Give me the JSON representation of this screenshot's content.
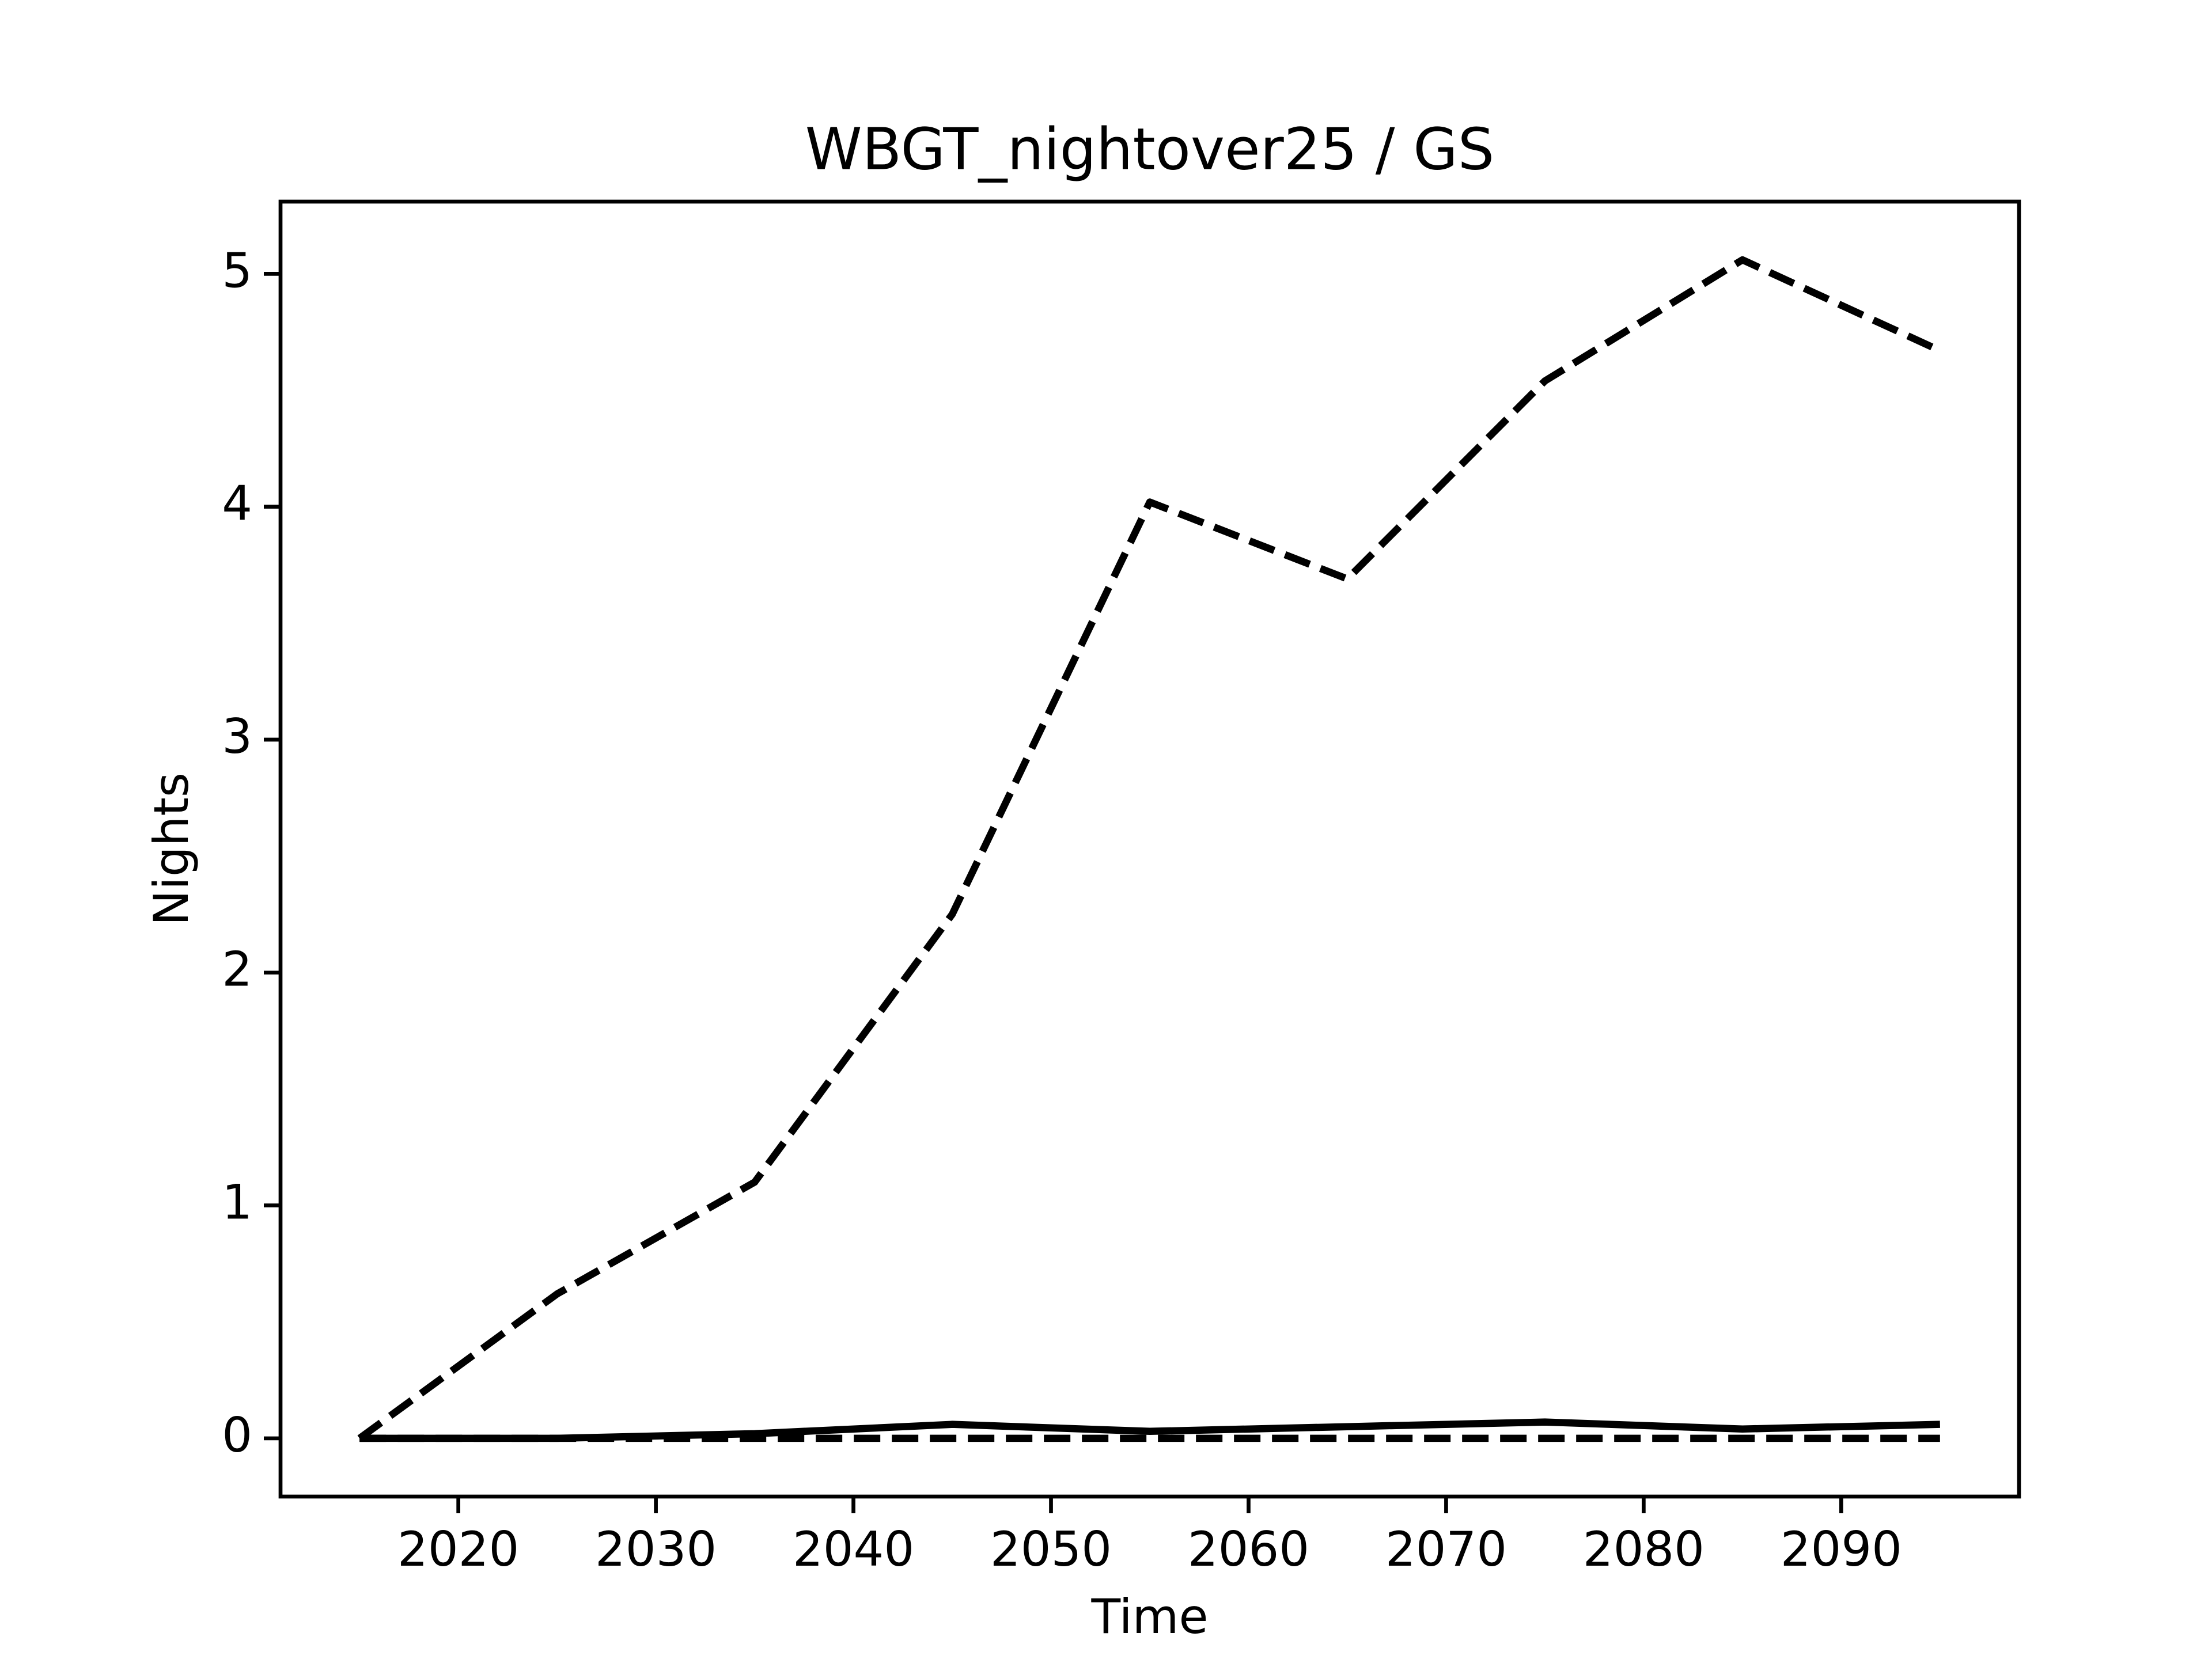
{
  "chart_data": {
    "type": "line",
    "title": "WBGT_nightover25 / GS",
    "x_label": "Time",
    "y_label": "Nights",
    "x": [
      2015,
      2025,
      2035,
      2045,
      2055,
      2065,
      2075,
      2085,
      2095
    ],
    "series": [
      {
        "color": "#000000",
        "dashed": true,
        "values": [
          0,
          0.62,
          1.1,
          2.25,
          4.02,
          3.69,
          4.54,
          5.06,
          4.67
        ]
      },
      {
        "color": "#000000",
        "dashed": false,
        "values": [
          0,
          0,
          0.02,
          0.06,
          0.03,
          0.05,
          0.07,
          0.04,
          0.06
        ]
      },
      {
        "color": "#000000",
        "dashed": true,
        "values": [
          0,
          0,
          0,
          0,
          0,
          0,
          0,
          0,
          0
        ]
      }
    ],
    "xlim": [
      2011,
      2099
    ],
    "ylim": [
      -0.25,
      5.31
    ],
    "xticks": [
      2020,
      2030,
      2040,
      2050,
      2060,
      2070,
      2080,
      2090
    ],
    "yticks": [
      0,
      1,
      2,
      3,
      4,
      5
    ],
    "grid": false
  }
}
